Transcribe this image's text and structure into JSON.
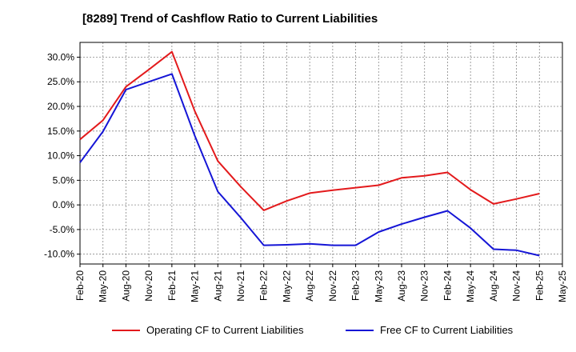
{
  "chart_data": {
    "type": "line",
    "title": "[8289]  Trend of Cashflow Ratio to Current Liabilities",
    "xlabel": "",
    "ylabel": "",
    "ylim": [
      -12,
      33
    ],
    "yticks": [
      "30.0%",
      "25.0%",
      "20.0%",
      "15.0%",
      "10.0%",
      "5.0%",
      "0.0%",
      "-5.0%",
      "-10.0%"
    ],
    "ytick_values": [
      30,
      25,
      20,
      15,
      10,
      5,
      0,
      -5,
      -10
    ],
    "categories": [
      "Feb-20",
      "May-20",
      "Aug-20",
      "Nov-20",
      "Feb-21",
      "May-21",
      "Aug-21",
      "Nov-21",
      "Feb-22",
      "May-22",
      "Aug-22",
      "Nov-22",
      "Feb-23",
      "May-23",
      "Aug-23",
      "Nov-23",
      "Feb-24",
      "May-24",
      "Aug-24",
      "Nov-24",
      "Feb-25",
      "May-25"
    ],
    "grid": true,
    "legend_position": "bottom",
    "series": [
      {
        "name": "Operating CF to Current Liabilities",
        "color": "#e31a1c",
        "values": [
          13.3,
          17.2,
          24.0,
          27.5,
          31.1,
          19.0,
          8.9,
          3.7,
          -1.1,
          0.8,
          2.4,
          3.0,
          3.5,
          4.0,
          5.5,
          5.9,
          6.6,
          3.1,
          0.2,
          1.2,
          2.3,
          null
        ]
      },
      {
        "name": "Free CF to Current Liabilities",
        "color": "#1515d6",
        "values": [
          8.6,
          14.9,
          23.4,
          25.0,
          26.6,
          14.0,
          2.7,
          -2.6,
          -8.2,
          -8.1,
          -7.9,
          -8.2,
          -8.2,
          -5.5,
          -3.9,
          -2.5,
          -1.2,
          -4.7,
          -9.0,
          -9.2,
          -10.3,
          null
        ]
      }
    ]
  }
}
